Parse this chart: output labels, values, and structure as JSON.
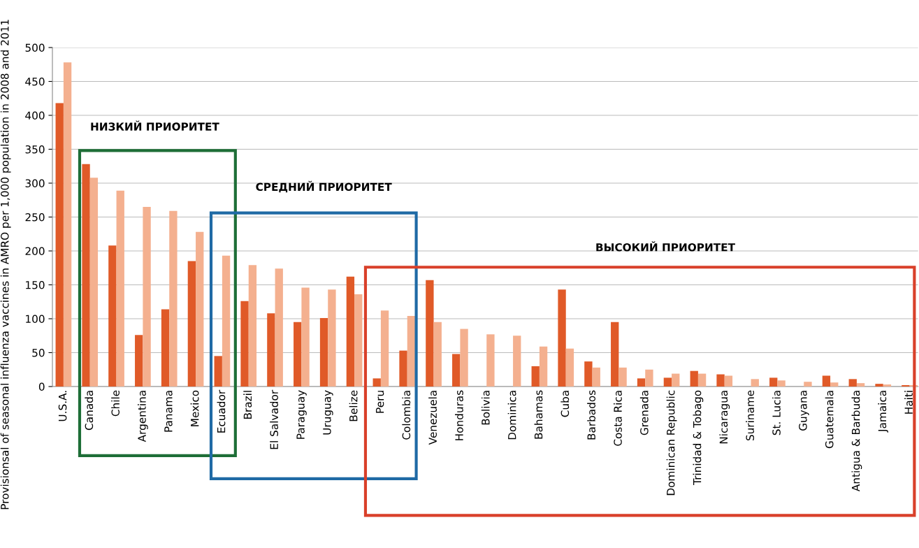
{
  "chart_data": {
    "type": "bar",
    "ylabel": "Provisionsal of seasonal influenza vaccines in AMRO per 1,000 population in 2008 and 2011",
    "categories": [
      "U.S.A.",
      "Canada",
      "Chile",
      "Argentina",
      "Panama",
      "Mexico",
      "Ecuador",
      "Brazil",
      "El Salvador",
      "Paraguay",
      "Uruguay",
      "Belize",
      "Peru",
      "Colombia",
      "Venezuela",
      "Honduras",
      "Bolivia",
      "Dominica",
      "Bahamas",
      "Cuba",
      "Barbados",
      "Costa Rica",
      "Grenada",
      "Dominican Republic",
      "Trinidad & Tobago",
      "Nicaragua",
      "Suriname",
      "St. Lucia",
      "Guyana",
      "Guatemala",
      "Antigua & Barbuda",
      "Jamaica",
      "Haiti"
    ],
    "series": [
      {
        "color": "#e05a28",
        "values": [
          418,
          328,
          208,
          76,
          114,
          185,
          45,
          126,
          108,
          95,
          101,
          162,
          12,
          53,
          157,
          48,
          0,
          0,
          30,
          143,
          37,
          95,
          12,
          13,
          23,
          18,
          0,
          13,
          0,
          16,
          11,
          4,
          2
        ]
      },
      {
        "color": "#f4b08f",
        "values": [
          478,
          308,
          289,
          265,
          259,
          228,
          193,
          179,
          174,
          146,
          143,
          136,
          112,
          104,
          95,
          85,
          77,
          75,
          59,
          56,
          28,
          28,
          25,
          19,
          19,
          16,
          11,
          9,
          7,
          6,
          5,
          3,
          2
        ]
      }
    ],
    "ylim": [
      0,
      500
    ],
    "yticks": [
      0,
      50,
      100,
      150,
      200,
      250,
      300,
      350,
      400,
      450,
      500
    ],
    "grid": "y",
    "annotations": [
      "НИЗКИЙ ПРИОРИТЕТ",
      "СРЕДНИЙ ПРИОРИТЕТ",
      "ВЫСОКИЙ ПРИОРИТЕТ"
    ]
  }
}
